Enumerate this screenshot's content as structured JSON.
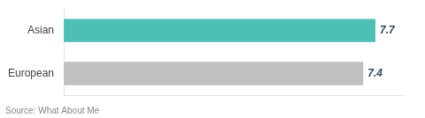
{
  "chart_data": {
    "type": "bar",
    "orientation": "horizontal",
    "categories": [
      "Asian",
      "European"
    ],
    "values": [
      7.7,
      7.4
    ],
    "colors": [
      "#4dbfb5",
      "#c0c0c0"
    ],
    "xlim": [
      0,
      8.4
    ],
    "grid": false,
    "data_labels": true,
    "tick_labels": "y",
    "annotation": "Source: What About Me"
  }
}
